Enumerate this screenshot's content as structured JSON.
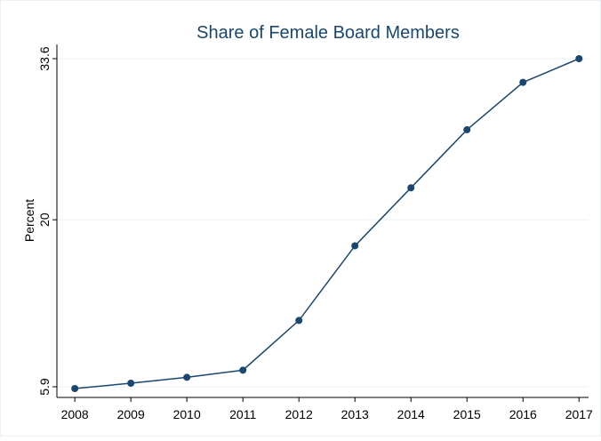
{
  "chart_data": {
    "type": "line",
    "title": "Share of Female Board Members",
    "y_label": "Percent",
    "x": [
      2008,
      2009,
      2010,
      2011,
      2012,
      2013,
      2014,
      2015,
      2016,
      2017
    ],
    "series": [
      {
        "name": "Percent",
        "color": "#1a476f",
        "values": [
          5.75,
          6.2,
          6.7,
          7.3,
          11.5,
          17.8,
          22.7,
          27.6,
          31.6,
          33.6
        ]
      }
    ],
    "xlim": [
      2007.68,
      2017.17
    ],
    "xticks": [
      2008,
      2009,
      2010,
      2011,
      2012,
      2013,
      2014,
      2015,
      2016,
      2017
    ],
    "ylim": [
      5,
      34.8
    ],
    "yticks": [
      5.9,
      20,
      33.6
    ],
    "grid": true
  }
}
